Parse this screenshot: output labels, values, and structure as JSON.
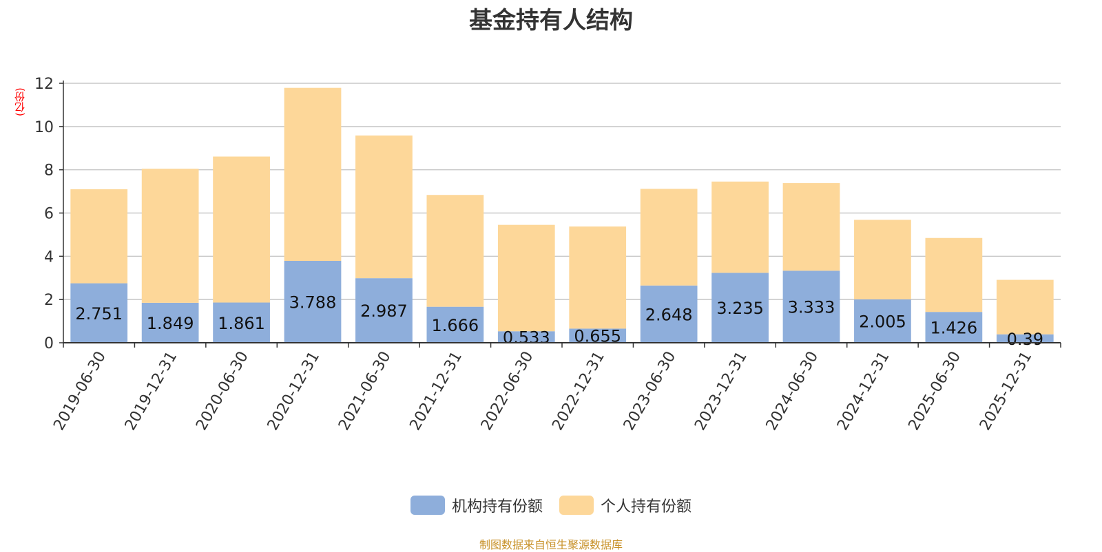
{
  "chart_data": {
    "type": "bar",
    "stacked": true,
    "title": "基金持有人结构",
    "unit_label": "(亿份)",
    "categories": [
      "2019-06-30",
      "2019-12-31",
      "2020-06-30",
      "2020-12-31",
      "2021-06-30",
      "2021-12-31",
      "2022-06-30",
      "2022-12-31",
      "2023-06-30",
      "2023-12-31",
      "2024-06-30",
      "2024-12-31",
      "2025-06-30",
      "2025-12-31"
    ],
    "series": [
      {
        "name": "机构持有份额",
        "color": "#8eaedb",
        "values": [
          2.751,
          1.849,
          1.861,
          3.788,
          2.987,
          1.666,
          0.533,
          0.655,
          2.648,
          3.235,
          3.333,
          2.005,
          1.426,
          0.39
        ],
        "labels": [
          "2.751",
          "1.849",
          "1.861",
          "3.788",
          "2.987",
          "1.666",
          "0.533",
          "0.655",
          "2.648",
          "3.235",
          "3.333",
          "2.005",
          "1.426",
          "0.39"
        ]
      },
      {
        "name": "个人持有份额",
        "color": "#fdd799",
        "values": [
          4.35,
          6.2,
          6.75,
          8.0,
          6.6,
          5.17,
          4.92,
          4.72,
          4.47,
          4.22,
          4.05,
          3.68,
          3.42,
          2.52
        ]
      }
    ],
    "ylim": [
      0,
      12
    ],
    "yticks": [
      "0",
      "2",
      "4",
      "6",
      "8",
      "10",
      "12"
    ],
    "grid": true,
    "legend_position": "bottom"
  },
  "source_note": "制图数据来自恒生聚源数据库"
}
